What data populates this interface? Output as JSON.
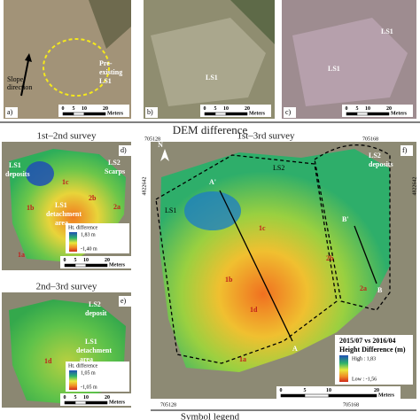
{
  "panels": {
    "a": {
      "label": "a)",
      "slope": [
        "Slope",
        "direction"
      ],
      "feature": [
        "Pre-",
        "existing",
        "LS1"
      ],
      "scale": [
        "0",
        "5",
        "10",
        "20",
        "Meters"
      ]
    },
    "b": {
      "label": "b)",
      "feature": "LS1",
      "scale": [
        "0",
        "5",
        "10",
        "20",
        "Meters"
      ]
    },
    "c": {
      "label": "c)",
      "features": [
        "LS1",
        "LS1"
      ],
      "scale": [
        "0",
        "5",
        "10",
        "20",
        "Meters"
      ]
    },
    "d": {
      "label": "d)",
      "title": "1st–2nd survey",
      "texts": [
        "LS1",
        "deposits",
        "LS2",
        "Scarps",
        "1c",
        "2b",
        "1b",
        "LS1",
        "detachment",
        "area",
        "1a",
        "2a"
      ],
      "legend": {
        "title": "Ht. difference",
        "high": "1,83 m",
        "low": "-1,40 m"
      },
      "scale": [
        "0",
        "5",
        "10",
        "20",
        "Meters"
      ]
    },
    "e": {
      "label": "e)",
      "title": "2nd–3rd survey",
      "texts": [
        "LS2",
        "deposit",
        "LS1",
        "detachment",
        "area",
        "1d"
      ],
      "legend": {
        "title": "Ht. difference",
        "high": "1,05 m",
        "low": "-1,05 m"
      },
      "scale": [
        "0",
        "5",
        "10",
        "20",
        "Meters"
      ]
    },
    "f": {
      "label": "f)",
      "title": "1st–3rd survey",
      "north": "N",
      "texts": [
        "LS1",
        "LS2",
        "LS2",
        "deposits",
        "A'",
        "A",
        "B'",
        "B",
        "1c",
        "1b",
        "1d",
        "2b",
        "2a",
        "1a"
      ],
      "coords": [
        "705128",
        "705168",
        "4822642",
        "4822642",
        "705128",
        "705168"
      ],
      "legend": {
        "period": "2015/07 vs 2016/04",
        "title": "Height Difference (m)",
        "high": "High : 1,83",
        "low": "Low : -1,56"
      },
      "scale": [
        "0",
        "5",
        "10",
        "20",
        "Meters"
      ]
    }
  },
  "sections": {
    "dem": "DEM difference",
    "symbols": "Symbol legend"
  }
}
